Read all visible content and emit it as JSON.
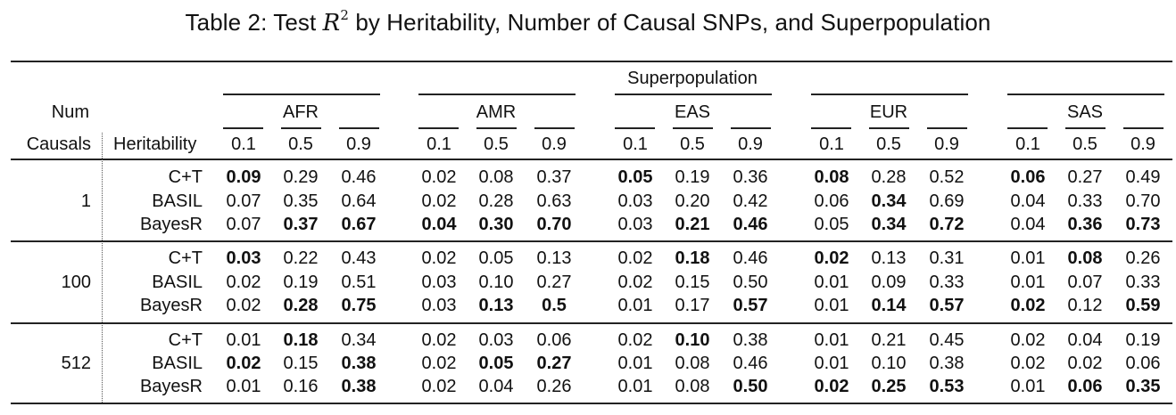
{
  "caption": {
    "prefix": "Table 2:  Test ",
    "math": "R",
    "sup": "2",
    "suffix": " by Heritability, Number of Causal SNPs, and Superpopulation"
  },
  "header": {
    "superpopulation": "Superpopulation",
    "num": "Num",
    "causals": "Causals",
    "heritability": "Heritability",
    "pops": [
      "AFR",
      "AMR",
      "EAS",
      "EUR",
      "SAS"
    ],
    "h_values": [
      "0.1",
      "0.5",
      "0.9"
    ]
  },
  "blocks": [
    {
      "num_causals": "1",
      "rows": [
        {
          "method": "C+T",
          "values": [
            "0.09",
            "0.29",
            "0.46",
            "0.02",
            "0.08",
            "0.37",
            "0.05",
            "0.19",
            "0.36",
            "0.08",
            "0.28",
            "0.52",
            "0.06",
            "0.27",
            "0.49"
          ],
          "bold": [
            1,
            0,
            0,
            0,
            0,
            0,
            1,
            0,
            0,
            1,
            0,
            0,
            1,
            0,
            0
          ]
        },
        {
          "method": "BASIL",
          "values": [
            "0.07",
            "0.35",
            "0.64",
            "0.02",
            "0.28",
            "0.63",
            "0.03",
            "0.20",
            "0.42",
            "0.06",
            "0.34",
            "0.69",
            "0.04",
            "0.33",
            "0.70"
          ],
          "bold": [
            0,
            0,
            0,
            0,
            0,
            0,
            0,
            0,
            0,
            0,
            1,
            0,
            0,
            0,
            0
          ]
        },
        {
          "method": "BayesR",
          "values": [
            "0.07",
            "0.37",
            "0.67",
            "0.04",
            "0.30",
            "0.70",
            "0.03",
            "0.21",
            "0.46",
            "0.05",
            "0.34",
            "0.72",
            "0.04",
            "0.36",
            "0.73"
          ],
          "bold": [
            0,
            1,
            1,
            1,
            1,
            1,
            0,
            1,
            1,
            0,
            1,
            1,
            0,
            1,
            1
          ]
        }
      ]
    },
    {
      "num_causals": "100",
      "rows": [
        {
          "method": "C+T",
          "values": [
            "0.03",
            "0.22",
            "0.43",
            "0.02",
            "0.05",
            "0.13",
            "0.02",
            "0.18",
            "0.46",
            "0.02",
            "0.13",
            "0.31",
            "0.01",
            "0.08",
            "0.26"
          ],
          "bold": [
            1,
            0,
            0,
            0,
            0,
            0,
            0,
            1,
            0,
            1,
            0,
            0,
            0,
            1,
            0
          ]
        },
        {
          "method": "BASIL",
          "values": [
            "0.02",
            "0.19",
            "0.51",
            "0.03",
            "0.10",
            "0.27",
            "0.02",
            "0.15",
            "0.50",
            "0.01",
            "0.09",
            "0.33",
            "0.01",
            "0.07",
            "0.33"
          ],
          "bold": [
            0,
            0,
            0,
            0,
            0,
            0,
            0,
            0,
            0,
            0,
            0,
            0,
            0,
            0,
            0
          ]
        },
        {
          "method": "BayesR",
          "values": [
            "0.02",
            "0.28",
            "0.75",
            "0.03",
            "0.13",
            "0.5",
            "0.01",
            "0.17",
            "0.57",
            "0.01",
            "0.14",
            "0.57",
            "0.02",
            "0.12",
            "0.59"
          ],
          "bold": [
            0,
            1,
            1,
            0,
            1,
            1,
            0,
            0,
            1,
            0,
            1,
            1,
            1,
            0,
            1
          ]
        }
      ]
    },
    {
      "num_causals": "512",
      "rows": [
        {
          "method": "C+T",
          "values": [
            "0.01",
            "0.18",
            "0.34",
            "0.02",
            "0.03",
            "0.06",
            "0.02",
            "0.10",
            "0.38",
            "0.01",
            "0.21",
            "0.45",
            "0.02",
            "0.04",
            "0.19"
          ],
          "bold": [
            0,
            1,
            0,
            0,
            0,
            0,
            0,
            1,
            0,
            0,
            0,
            0,
            0,
            0,
            0
          ]
        },
        {
          "method": "BASIL",
          "values": [
            "0.02",
            "0.15",
            "0.38",
            "0.02",
            "0.05",
            "0.27",
            "0.01",
            "0.08",
            "0.46",
            "0.01",
            "0.10",
            "0.38",
            "0.02",
            "0.02",
            "0.06"
          ],
          "bold": [
            1,
            0,
            1,
            0,
            1,
            1,
            0,
            0,
            0,
            0,
            0,
            0,
            0,
            0,
            0
          ]
        },
        {
          "method": "BayesR",
          "values": [
            "0.01",
            "0.16",
            "0.38",
            "0.02",
            "0.04",
            "0.26",
            "0.01",
            "0.08",
            "0.50",
            "0.02",
            "0.25",
            "0.53",
            "0.01",
            "0.06",
            "0.35"
          ],
          "bold": [
            0,
            0,
            1,
            0,
            0,
            0,
            0,
            0,
            1,
            1,
            1,
            1,
            0,
            1,
            1
          ]
        }
      ]
    }
  ]
}
